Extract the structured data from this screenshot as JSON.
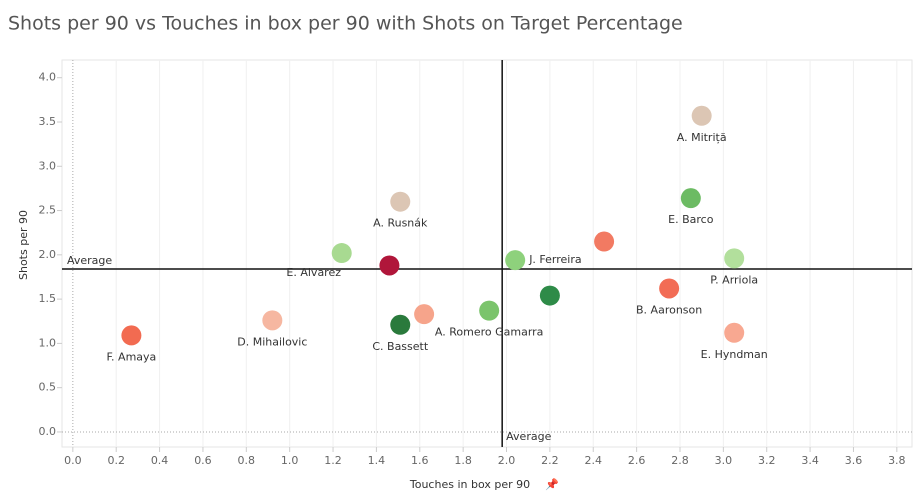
{
  "chart_data": {
    "type": "scatter",
    "title": "Shots per 90 vs Touches in box per 90 with Shots on Target Percentage",
    "x_label": "Touches in box per 90",
    "y_label": "Shots per 90",
    "xlim": [
      -0.05,
      3.87
    ],
    "ylim": [
      -0.17,
      4.2
    ],
    "xticks": [
      {
        "value": 0,
        "label": "0.0"
      },
      {
        "value": 0.2,
        "label": "0.2"
      },
      {
        "value": 0.4,
        "label": "0.4"
      },
      {
        "value": 0.6,
        "label": "0.6"
      },
      {
        "value": 0.8,
        "label": "0.8"
      },
      {
        "value": 1,
        "label": "1.0"
      },
      {
        "value": 1.2,
        "label": "1.2"
      },
      {
        "value": 1.4,
        "label": "1.4"
      },
      {
        "value": 1.6,
        "label": "1.6"
      },
      {
        "value": 1.8,
        "label": "1.8"
      },
      {
        "value": 2,
        "label": "2.0"
      },
      {
        "value": 2.2,
        "label": "2.2"
      },
      {
        "value": 2.4,
        "label": "2.4"
      },
      {
        "value": 2.6,
        "label": "2.6"
      },
      {
        "value": 2.8,
        "label": "2.8"
      },
      {
        "value": 3,
        "label": "3.0"
      },
      {
        "value": 3.2,
        "label": "3.2"
      },
      {
        "value": 3.4,
        "label": "3.4"
      },
      {
        "value": 3.6,
        "label": "3.6"
      },
      {
        "value": 3.8,
        "label": "3.8"
      }
    ],
    "yticks": [
      {
        "value": 0,
        "label": "0.0"
      },
      {
        "value": 0.5,
        "label": "0.5"
      },
      {
        "value": 1,
        "label": "1.0"
      },
      {
        "value": 1.5,
        "label": "1.5"
      },
      {
        "value": 2,
        "label": "2.0"
      },
      {
        "value": 2.5,
        "label": "2.5"
      },
      {
        "value": 3,
        "label": "3.0"
      },
      {
        "value": 3.5,
        "label": "3.5"
      },
      {
        "value": 4,
        "label": "4.0"
      }
    ],
    "grid": true,
    "average_lines": [
      {
        "axis": "y",
        "value": 1.84,
        "label": "Average"
      },
      {
        "axis": "x",
        "value": 1.98,
        "label": "Average"
      }
    ],
    "points": {
      "labels": [
        "A. Mitriță",
        "E. Barco",
        "A. Rusnák",
        null,
        "E. Alvarez",
        null,
        "J. Ferreira",
        "P. Arriola",
        null,
        "B. Aaronson",
        "A. Romero Gamarra",
        null,
        "C. Bassett",
        "D. Mihailovic",
        "E. Hyndman",
        "F. Amaya"
      ],
      "x": [
        2.9,
        2.85,
        1.51,
        2.45,
        1.24,
        1.46,
        2.04,
        3.05,
        2.2,
        2.75,
        1.92,
        1.62,
        1.51,
        0.92,
        3.05,
        0.27
      ],
      "y": [
        3.57,
        2.64,
        2.6,
        2.15,
        2.02,
        1.88,
        1.94,
        1.96,
        1.54,
        1.62,
        1.37,
        1.33,
        1.21,
        1.26,
        1.12,
        1.09
      ],
      "colors": [
        "#dcc6b4",
        "#6cbb63",
        "#dcc6b4",
        "#f27a62",
        "#a8da91",
        "#b0163a",
        "#8ed17c",
        "#b2df9c",
        "#2e8b48",
        "#f26c55",
        "#7bc46c",
        "#f6a48b",
        "#2a7a3c",
        "#f6b7a1",
        "#f8a891",
        "#f26b51"
      ]
    }
  }
}
